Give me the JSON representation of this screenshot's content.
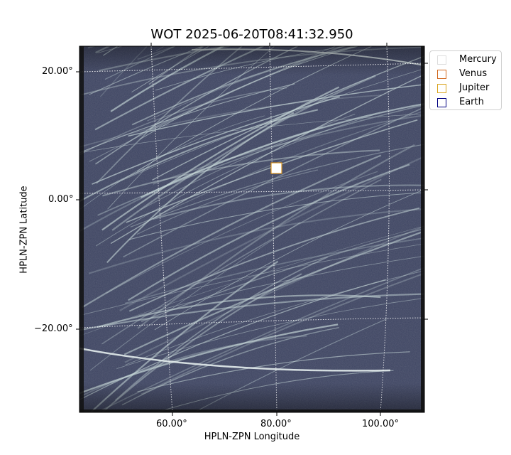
{
  "title": "WOT 2025-06-20T08:41:32.950",
  "xlabel": "HPLN-ZPN Longitude",
  "ylabel": "HPLN-ZPN Latitude",
  "x_ticks": [
    "60.00°",
    "80.00°",
    "100.00°"
  ],
  "y_ticks": [
    "20.00°",
    "0.00°",
    "−20.00°"
  ],
  "legend": [
    {
      "label": "Mercury",
      "color": "#dddddd"
    },
    {
      "label": "Venus",
      "color": "#d2691e"
    },
    {
      "label": "Jupiter",
      "color": "#daa520"
    },
    {
      "label": "Earth",
      "color": "#000080"
    }
  ],
  "colors": {
    "image_background": "#3e4563",
    "streak": "#c9dcdc",
    "grid": "#ffffff"
  }
}
